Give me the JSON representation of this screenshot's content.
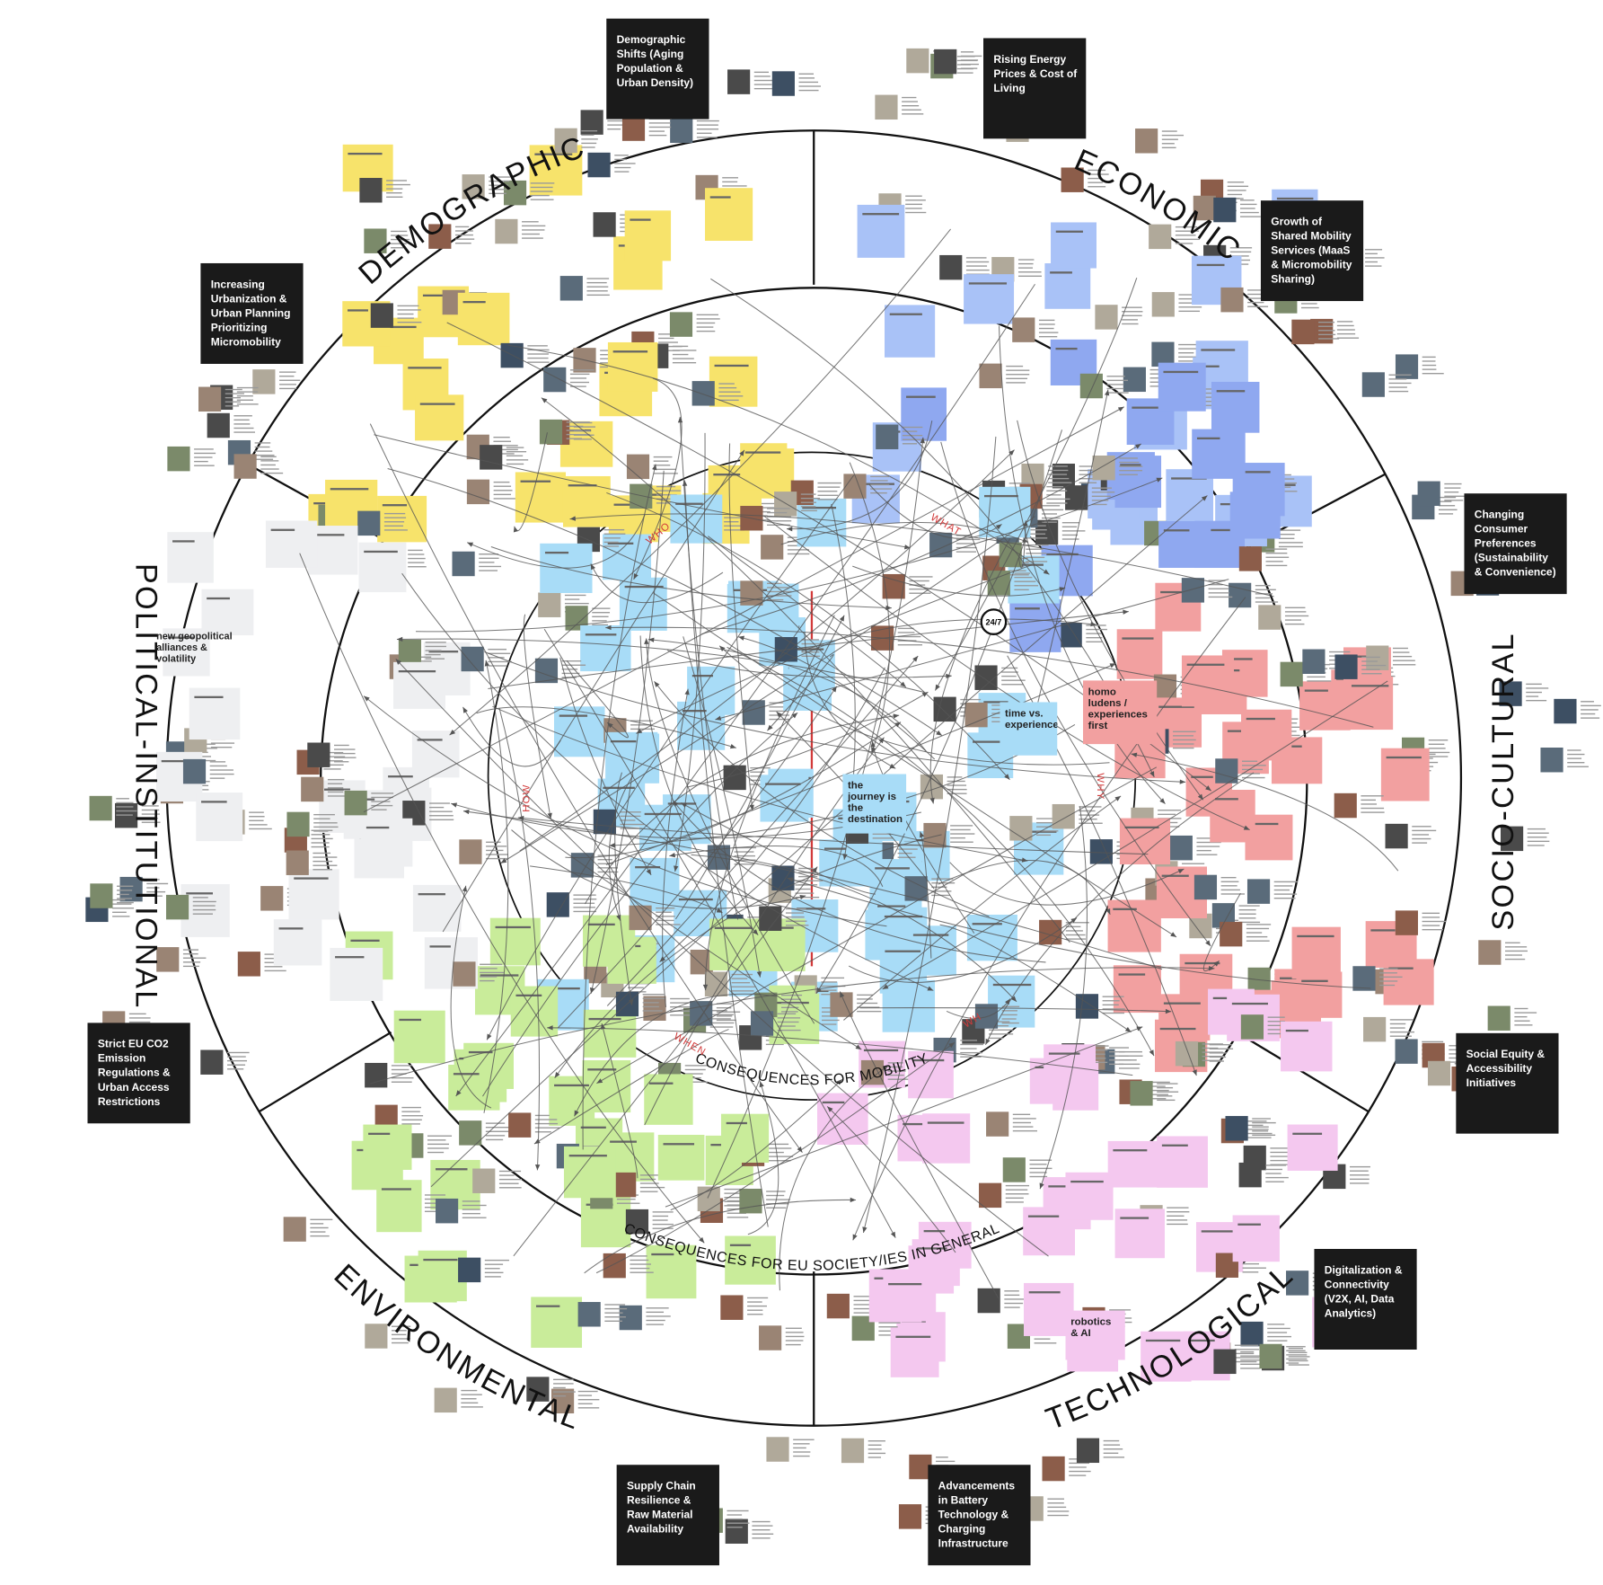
{
  "diagram": {
    "segments": [
      "DEMOGRAPHIC",
      "ECONOMIC",
      "SOCIO-CULTURAL",
      "TECHNOLOGICAL",
      "ENVIRONMENTAL",
      "POLITICAL-INSTITUTIONAL"
    ],
    "drivers": [
      "Demographic Shifts (Aging Population & Urban Density)",
      "Rising Energy Prices & Cost of Living",
      "Increasing Urbanization & Urban Planning Prioritizing Micromobility",
      "Growth of Shared Mobility Services (MaaS & Micromobility Sharing)",
      "Changing Consumer Preferences (Sustainability & Convenience)",
      "Strict EU CO2 Emission Regulations & Urban Access Restrictions",
      "Social Equity & Accessibility Initiatives",
      "Digitalization & Connectivity (V2X, AI, Data Analytics)",
      "Supply Chain Resilience & Raw Material Availability",
      "Advancements in Battery Technology & Charging Infrastructure"
    ],
    "questions": [
      "WHO",
      "WHAT",
      "WHY",
      "HOW",
      "WHEN",
      "WH"
    ],
    "rings": [
      "CONSEQUENCES FOR MOBILITY",
      "CONSEQUENCES FOR EU SOCIETY/IES IN GENERAL"
    ],
    "notes": [
      "new geopolitical alliances & volatility",
      "homo ludens / experiences first",
      "time vs. experience",
      "the journey is the destination",
      "robotics & AI"
    ],
    "badge": "24/7"
  }
}
